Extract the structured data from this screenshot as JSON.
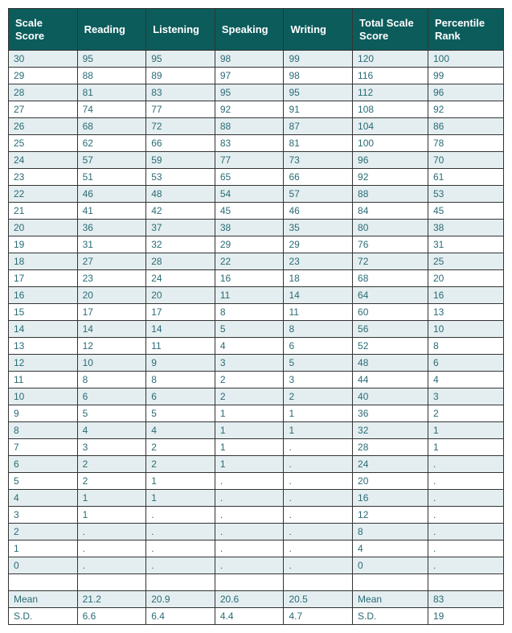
{
  "table": {
    "columns": [
      "Scale Score",
      "Reading",
      "Listening",
      "Speaking",
      "Writing",
      "Total Scale Score",
      "Percentile Rank"
    ],
    "rows": [
      [
        "30",
        "95",
        "95",
        "98",
        "99",
        "120",
        "100"
      ],
      [
        "29",
        "88",
        "89",
        "97",
        "98",
        "116",
        "99"
      ],
      [
        "28",
        "81",
        "83",
        "95",
        "95",
        "112",
        "96"
      ],
      [
        "27",
        "74",
        "77",
        "92",
        "91",
        "108",
        "92"
      ],
      [
        "26",
        "68",
        "72",
        "88",
        "87",
        "104",
        "86"
      ],
      [
        "25",
        "62",
        "66",
        "83",
        "81",
        "100",
        "78"
      ],
      [
        "24",
        "57",
        "59",
        "77",
        "73",
        "96",
        "70"
      ],
      [
        "23",
        "51",
        "53",
        "65",
        "66",
        "92",
        "61"
      ],
      [
        "22",
        "46",
        "48",
        "54",
        "57",
        "88",
        "53"
      ],
      [
        "21",
        "41",
        "42",
        "45",
        "46",
        "84",
        "45"
      ],
      [
        "20",
        "36",
        "37",
        "38",
        "35",
        "80",
        "38"
      ],
      [
        "19",
        "31",
        "32",
        "29",
        "29",
        "76",
        "31"
      ],
      [
        "18",
        "27",
        "28",
        "22",
        "23",
        "72",
        "25"
      ],
      [
        "17",
        "23",
        "24",
        "16",
        "18",
        "68",
        "20"
      ],
      [
        "16",
        "20",
        "20",
        "11",
        "14",
        "64",
        "16"
      ],
      [
        "15",
        "17",
        "17",
        "8",
        "11",
        "60",
        "13"
      ],
      [
        "14",
        "14",
        "14",
        "5",
        "8",
        "56",
        "10"
      ],
      [
        "13",
        "12",
        "11",
        "4",
        "6",
        "52",
        "8"
      ],
      [
        "12",
        "10",
        "9",
        "3",
        "5",
        "48",
        "6"
      ],
      [
        "11",
        "8",
        "8",
        "2",
        "3",
        "44",
        "4"
      ],
      [
        "10",
        "6",
        "6",
        "2",
        "2",
        "40",
        "3"
      ],
      [
        "9",
        "5",
        "5",
        "1",
        "1",
        "36",
        "2"
      ],
      [
        "8",
        "4",
        "4",
        "1",
        "1",
        "32",
        "1"
      ],
      [
        "7",
        "3",
        "2",
        "1",
        ".",
        "28",
        "1"
      ],
      [
        "6",
        "2",
        "2",
        "1",
        ".",
        "24",
        "."
      ],
      [
        "5",
        "2",
        "1",
        ".",
        ".",
        "20",
        "."
      ],
      [
        "4",
        "1",
        "1",
        ".",
        ".",
        "16",
        "."
      ],
      [
        "3",
        "1",
        ".",
        ".",
        ".",
        "12",
        "."
      ],
      [
        "2",
        ".",
        ".",
        ".",
        ".",
        "8",
        "."
      ],
      [
        "1",
        ".",
        ".",
        ".",
        ".",
        "4",
        "."
      ],
      [
        "0",
        ".",
        ".",
        ".",
        ".",
        "0",
        "."
      ],
      [
        "",
        "",
        "",
        "",
        "",
        "",
        ""
      ],
      [
        "Mean",
        "21.2",
        "20.9",
        "20.6",
        "20.5",
        "Mean",
        "83"
      ],
      [
        "S.D.",
        "6.6",
        "6.4",
        "4.4",
        "4.7",
        "S.D.",
        "19"
      ]
    ],
    "header_bg": "#0d5c5c",
    "header_color": "#ffffff",
    "row_even_bg": "#e4eef0",
    "row_odd_bg": "#ffffff",
    "cell_text_color": "#2a6b75",
    "border_color": "#333333",
    "body_fontsize": 12,
    "header_fontsize": 13
  }
}
